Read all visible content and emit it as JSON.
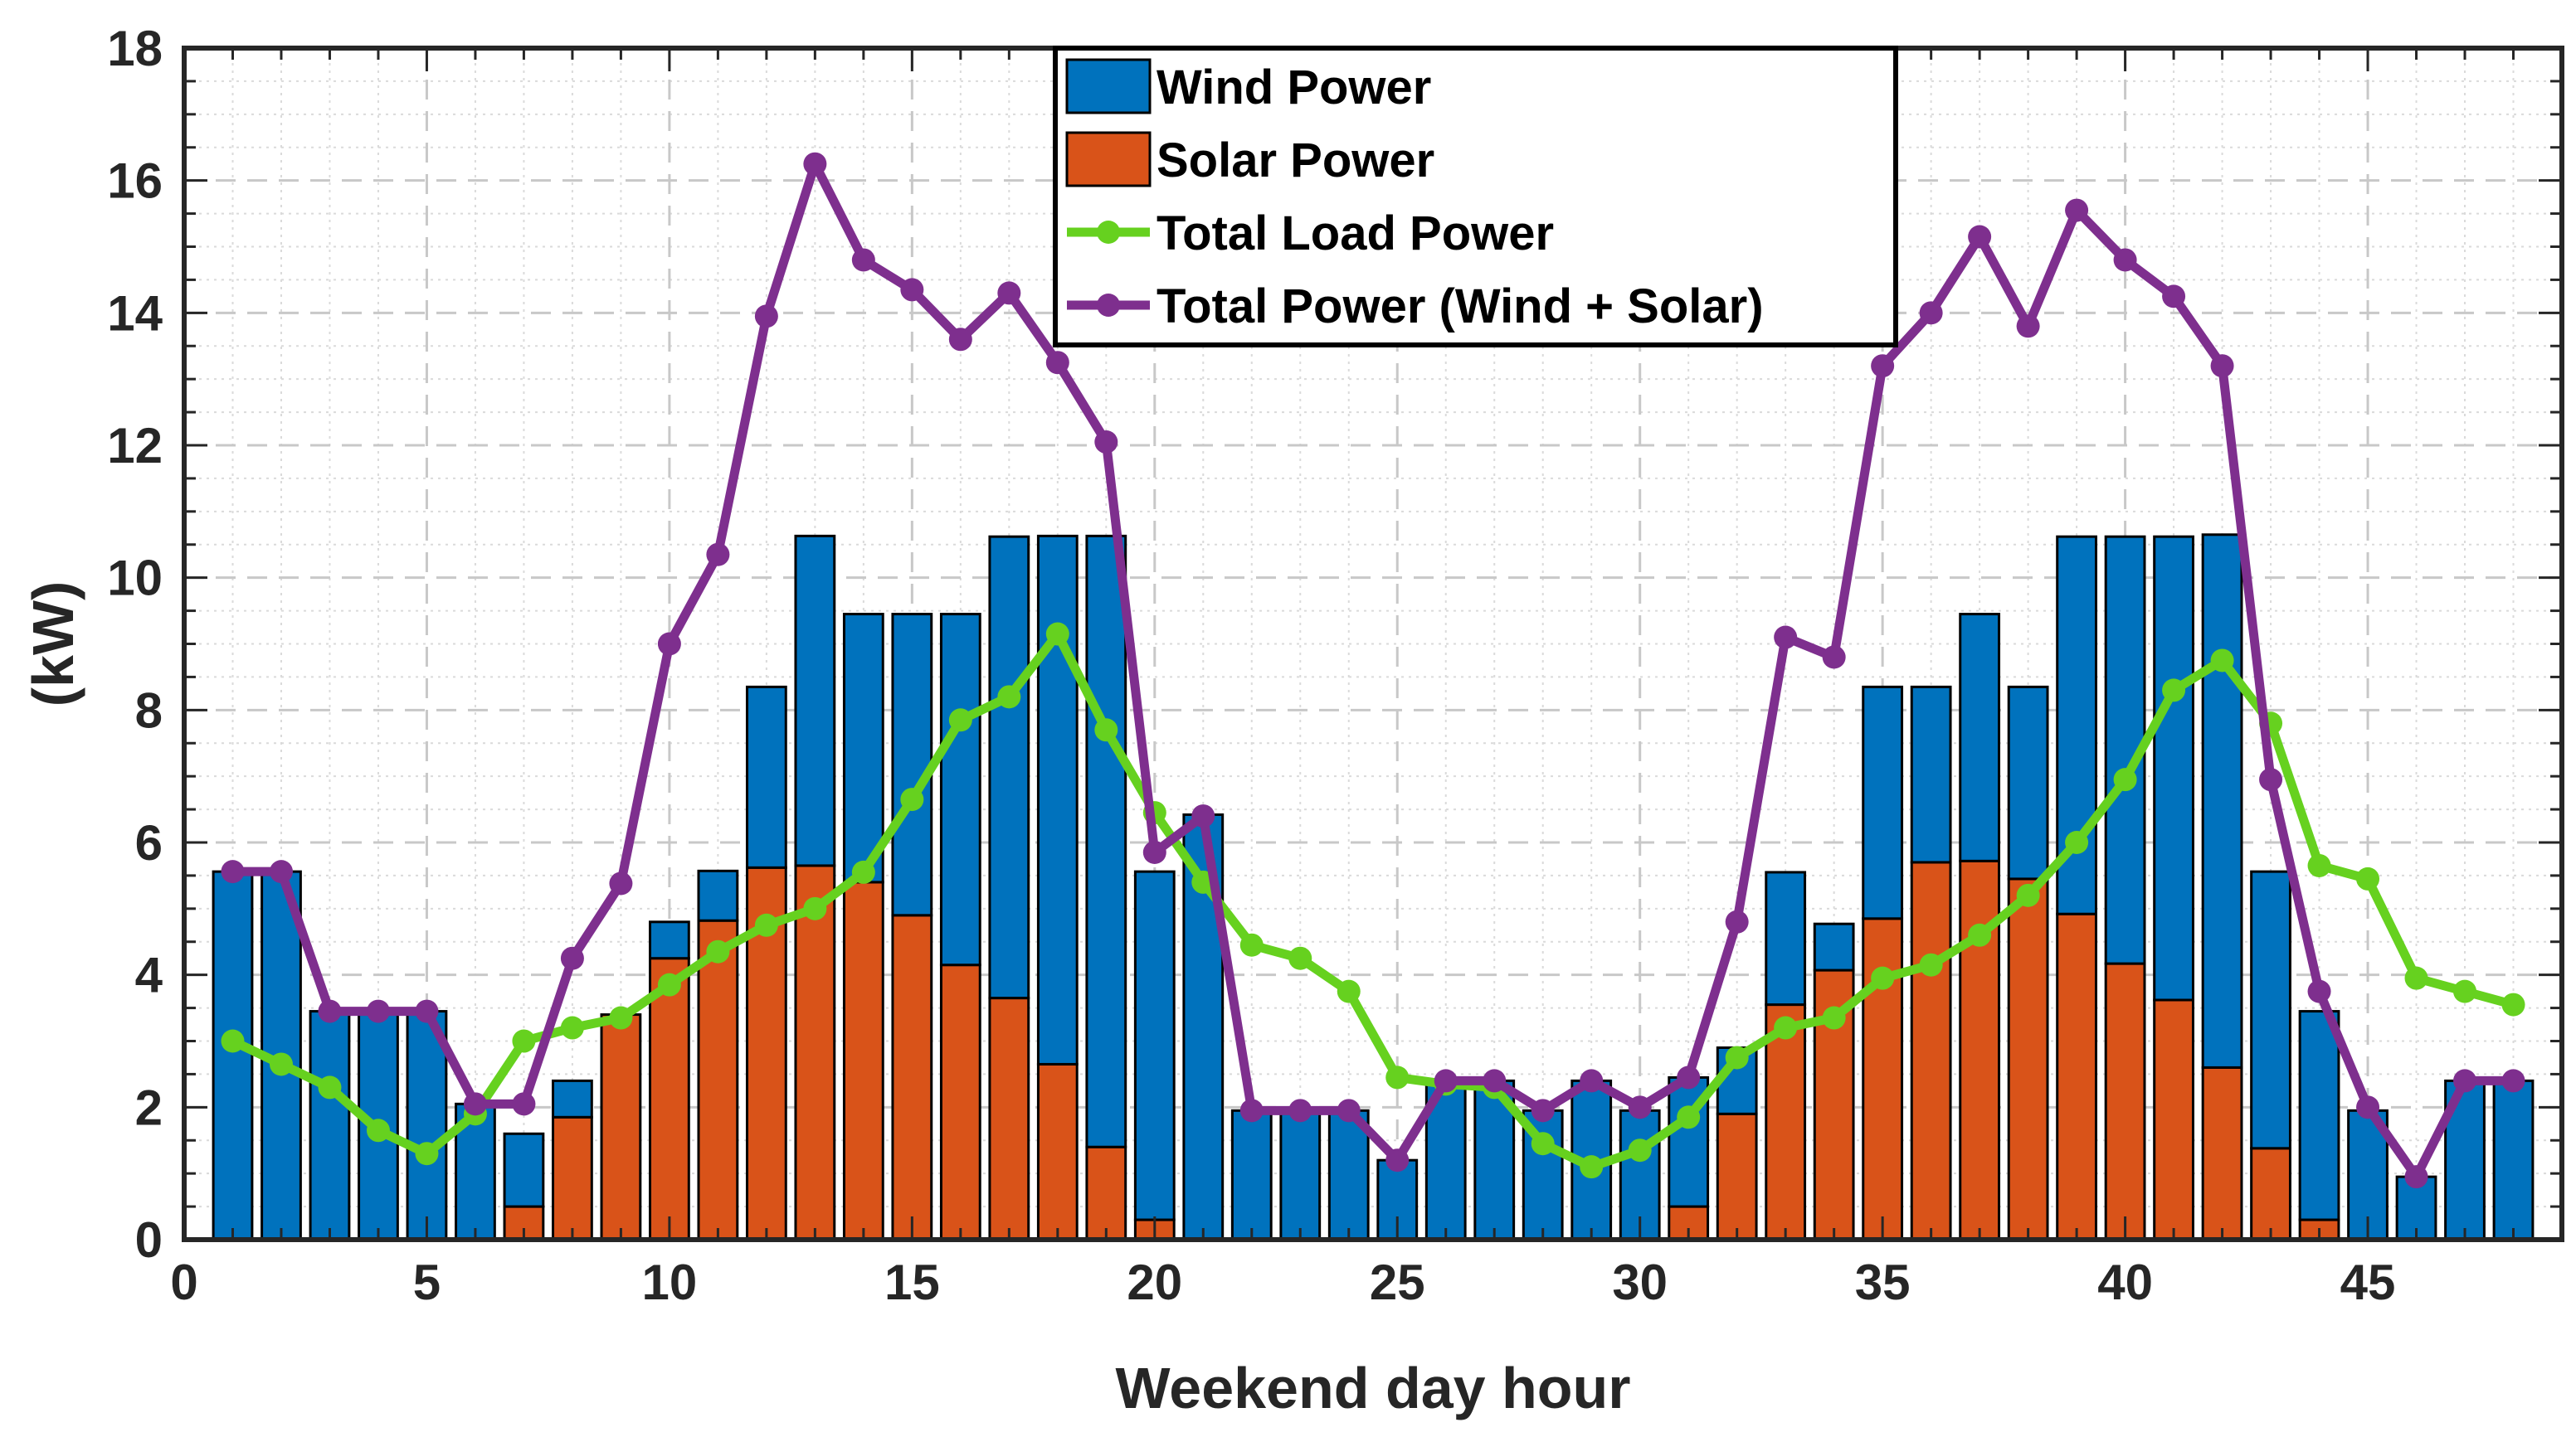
{
  "chart_data": {
    "type": "bar",
    "stacked": true,
    "xlabel": "Weekend day hour",
    "ylabel": "(kW)",
    "xlim": [
      0,
      49
    ],
    "ylim": [
      0,
      18
    ],
    "xticks": [
      0,
      5,
      10,
      15,
      20,
      25,
      30,
      35,
      40,
      45
    ],
    "yticks": [
      0,
      2,
      4,
      6,
      8,
      10,
      12,
      14,
      16,
      18
    ],
    "grid": true,
    "minor_grid": true,
    "legend_position": "top-center",
    "x": [
      1,
      2,
      3,
      4,
      5,
      6,
      7,
      8,
      9,
      10,
      11,
      12,
      13,
      14,
      15,
      16,
      17,
      18,
      19,
      20,
      21,
      22,
      23,
      24,
      25,
      26,
      27,
      28,
      29,
      30,
      31,
      32,
      33,
      34,
      35,
      36,
      37,
      38,
      39,
      40,
      41,
      42,
      43,
      44,
      45,
      46,
      47,
      48
    ],
    "series": [
      {
        "name": "Solar Power",
        "kind": "bar",
        "color": "#D95319",
        "values": [
          0,
          0,
          0,
          0,
          0,
          0,
          0.5,
          1.85,
          3.4,
          4.25,
          4.82,
          5.62,
          5.65,
          5.4,
          4.9,
          4.15,
          3.65,
          2.65,
          1.4,
          0.3,
          0,
          0,
          0,
          0,
          0,
          0,
          0,
          0,
          0,
          0,
          0.5,
          1.9,
          3.55,
          4.07,
          4.85,
          5.7,
          5.72,
          5.45,
          4.92,
          4.17,
          3.62,
          2.6,
          1.38,
          0.3,
          0,
          0,
          0,
          0
        ]
      },
      {
        "name": "Wind Power",
        "kind": "bar",
        "color": "#0072BD",
        "values": [
          5.56,
          5.56,
          3.45,
          3.45,
          3.45,
          2.05,
          1.1,
          0.55,
          0,
          0.55,
          0.75,
          2.73,
          4.98,
          4.05,
          4.55,
          5.3,
          6.97,
          7.98,
          9.23,
          5.26,
          6.42,
          1.95,
          1.95,
          1.95,
          1.2,
          2.4,
          2.4,
          1.95,
          2.4,
          1.95,
          1.95,
          1.0,
          2.0,
          0.7,
          3.5,
          2.65,
          3.73,
          2.9,
          5.7,
          6.45,
          7.0,
          8.05,
          4.18,
          3.15,
          1.95,
          0.95,
          2.4,
          2.4
        ]
      },
      {
        "name": "Total Load Power",
        "kind": "line",
        "color": "#66D11F",
        "values": [
          3.0,
          2.65,
          2.3,
          1.65,
          1.3,
          1.9,
          3.0,
          3.2,
          3.35,
          3.85,
          4.35,
          4.75,
          5.0,
          5.55,
          6.65,
          7.85,
          8.2,
          9.15,
          7.7,
          6.45,
          5.4,
          4.45,
          4.25,
          3.75,
          2.45,
          2.35,
          2.3,
          1.45,
          1.1,
          1.35,
          1.85,
          2.75,
          3.2,
          3.35,
          3.95,
          4.15,
          4.6,
          5.2,
          6.0,
          6.95,
          8.3,
          8.75,
          7.8,
          5.65,
          5.45,
          3.95,
          3.75,
          3.55
        ]
      },
      {
        "name": "Total Power (Wind + Solar)",
        "kind": "line",
        "color": "#7E2F8E",
        "values": [
          5.56,
          5.56,
          3.45,
          3.45,
          3.45,
          2.05,
          2.05,
          4.25,
          5.38,
          9.0,
          10.35,
          13.95,
          16.25,
          14.8,
          14.35,
          13.6,
          14.3,
          13.25,
          12.05,
          5.85,
          6.4,
          1.95,
          1.95,
          1.95,
          1.2,
          2.4,
          2.4,
          1.95,
          2.4,
          2.0,
          2.45,
          4.8,
          9.1,
          8.8,
          13.2,
          14.0,
          15.15,
          13.8,
          15.55,
          14.8,
          14.25,
          13.2,
          6.95,
          3.75,
          2.0,
          0.95,
          2.4,
          2.4
        ]
      }
    ],
    "legend": [
      {
        "label": "Wind Power",
        "marker": "bar"
      },
      {
        "label": "Solar Power",
        "marker": "bar"
      },
      {
        "label": "Total Load Power",
        "marker": "line"
      },
      {
        "label": "Total Power (Wind + Solar)",
        "marker": "line"
      }
    ],
    "style": {
      "axis_color": "#262626",
      "grid_color": "#DADADA",
      "bar_edge_color": "#000000",
      "background": "#FFFFFF"
    }
  }
}
